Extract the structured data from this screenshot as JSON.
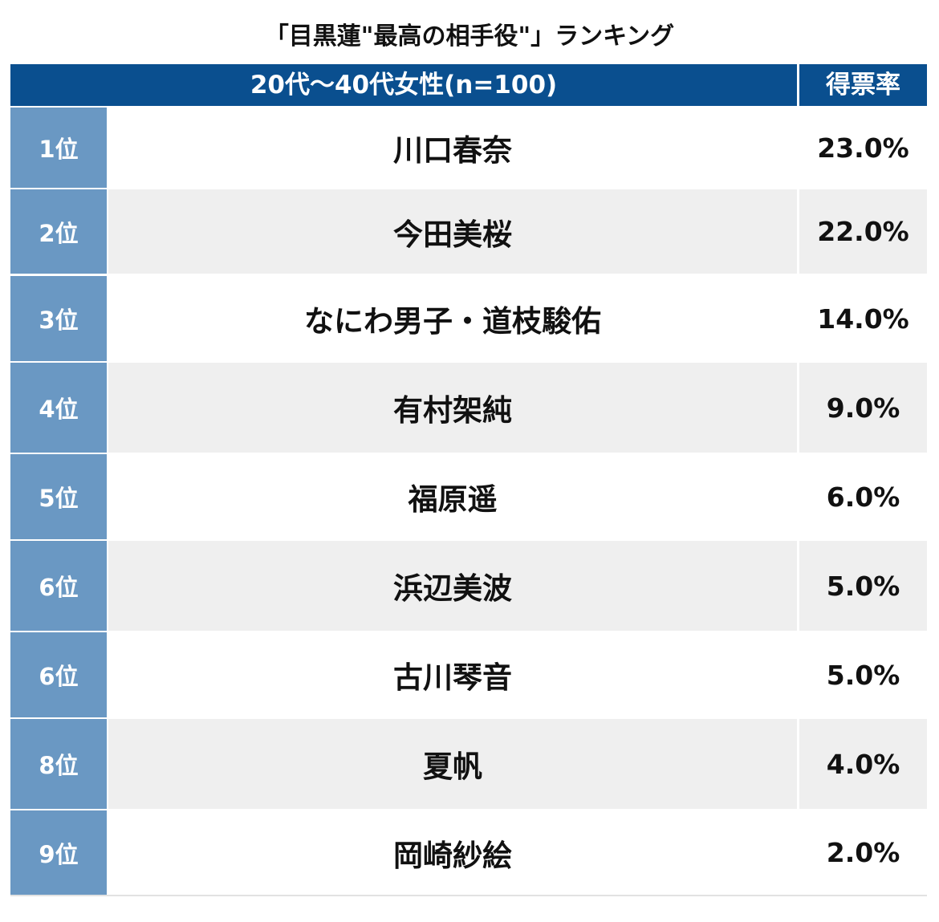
{
  "chart_data": {
    "type": "table",
    "title": "「目黒蓮\"最高の相手役\"」ランキング",
    "header": {
      "group": "20代〜40代女性(n=100)",
      "rate": "得票率"
    },
    "rows": [
      {
        "rank": "1位",
        "name": "川口春奈",
        "rate": "23.0%",
        "value": 23.0
      },
      {
        "rank": "2位",
        "name": "今田美桜",
        "rate": "22.0%",
        "value": 22.0
      },
      {
        "rank": "3位",
        "name": "なにわ男子・道枝駿佑",
        "rate": "14.0%",
        "value": 14.0
      },
      {
        "rank": "4位",
        "name": "有村架純",
        "rate": "9.0%",
        "value": 9.0
      },
      {
        "rank": "5位",
        "name": "福原遥",
        "rate": "6.0%",
        "value": 6.0
      },
      {
        "rank": "6位",
        "name": "浜辺美波",
        "rate": "5.0%",
        "value": 5.0
      },
      {
        "rank": "6位",
        "name": "古川琴音",
        "rate": "5.0%",
        "value": 5.0
      },
      {
        "rank": "8位",
        "name": "夏帆",
        "rate": "4.0%",
        "value": 4.0
      },
      {
        "rank": "9位",
        "name": "岡崎紗絵",
        "rate": "2.0%",
        "value": 2.0
      }
    ]
  },
  "colors": {
    "header_bg": "#0a4f8f",
    "rank_bg": "#6a98c3",
    "row_alt_bg": "#efefef"
  }
}
